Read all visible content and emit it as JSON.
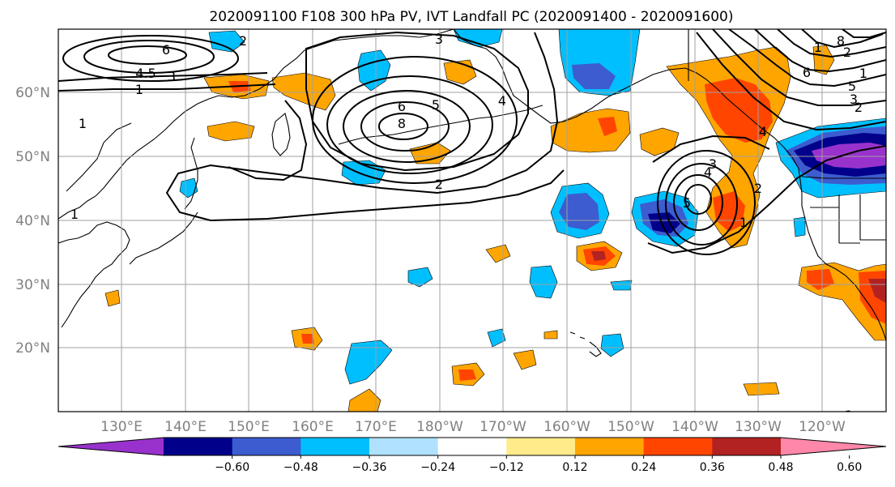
{
  "title": "2020091100 F108 300 hPa PV, IVT Landfall PC (2020091400 - 2020091600)",
  "latitude_labels": [
    "60°N",
    "50°N",
    "40°N",
    "30°N",
    "20°N"
  ],
  "longitude_labels": [
    "130°E",
    "140°E",
    "150°E",
    "160°E",
    "170°E",
    "180°W",
    "170°W",
    "160°W",
    "150°W",
    "140°W",
    "130°W",
    "120°W"
  ],
  "colorbar": {
    "colors": [
      "#9932cc",
      "#00008b",
      "#3c5ccf",
      "#00bfff",
      "#b0e2ff",
      "#ffffff",
      "#ffeb8a",
      "#ffa500",
      "#ff4500",
      "#b22222",
      "#ff88aa"
    ],
    "tick_labels": [
      "−0.60",
      "−0.48",
      "−0.36",
      "−0.24",
      "−0.12",
      "0.12",
      "0.24",
      "0.36",
      "0.48",
      "0.60"
    ],
    "extend": "both"
  },
  "contour_labels": [
    "6",
    "4.5",
    "3",
    "1",
    "2",
    "6",
    "5",
    "8",
    "3",
    "4",
    "5",
    "1",
    "1",
    "2",
    "4",
    "3",
    "6",
    "2",
    "5",
    "3",
    "2",
    "8",
    "1",
    "1",
    "4",
    "2",
    "1",
    "2"
  ]
}
